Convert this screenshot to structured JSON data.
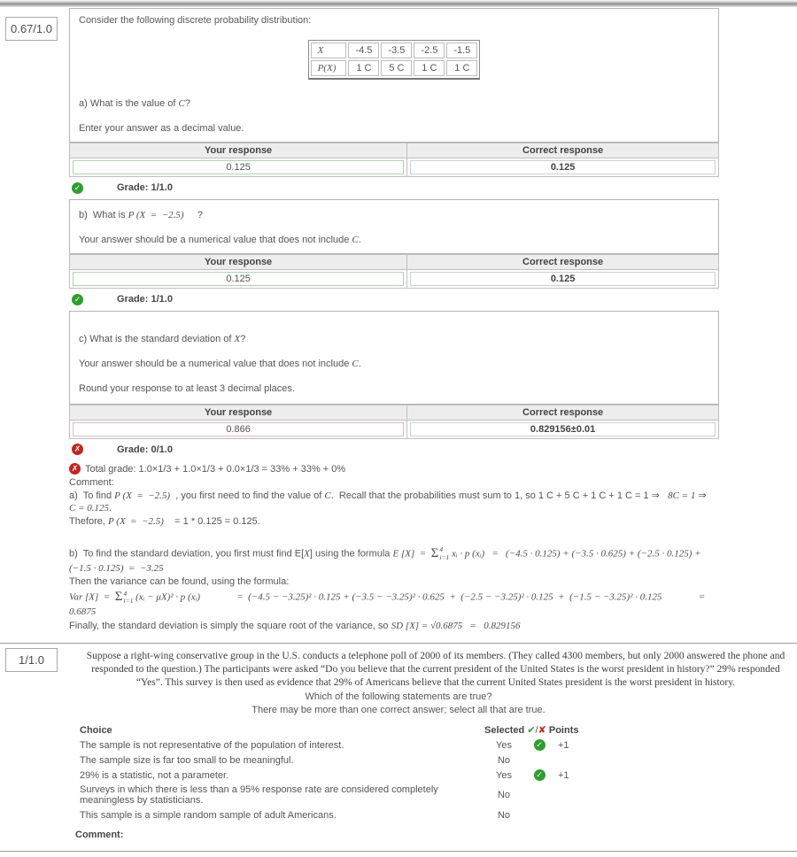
{
  "colors": {
    "green": "#2f9e2f",
    "red": "#c42420"
  },
  "icons": {
    "check_glyph": "✔",
    "cross_glyph": "✘",
    "badge_check": "✓",
    "badge_cross": "✗"
  },
  "labels": {
    "your_response": "Your response",
    "correct_response": "Correct response"
  },
  "q1": {
    "score": "0.67/1.0",
    "intro": "Consider the following discrete probability distribution:",
    "dist_table": {
      "row_labels": [
        "X",
        "P(X)"
      ],
      "x_values": [
        "-4.5",
        "-3.5",
        "-2.5",
        "-1.5"
      ],
      "p_values": [
        "1 C",
        "5 C",
        "1 C",
        "1 C"
      ]
    },
    "part_a": {
      "question_segs": [
        {
          "t": "a) What is the value of "
        },
        {
          "t": "C",
          "m": true
        },
        {
          "t": "?"
        }
      ],
      "instruction_segs": [
        {
          "t": "Enter your answer as a decimal value."
        }
      ],
      "your_response": "0.125",
      "correct_response": "0.125",
      "your_status": "correct",
      "status": "correct",
      "grade": "Grade: 1/1.0"
    },
    "part_b": {
      "question_segs": [
        {
          "t": "b)  What is "
        },
        {
          "t": "P (X  =  −2.5)",
          "m": true
        },
        {
          "t": "     ?"
        }
      ],
      "instruction_segs": [
        {
          "t": "Your answer should be a numerical value that does not include "
        },
        {
          "t": "C",
          "m": true
        },
        {
          "t": "."
        }
      ],
      "your_response": "0.125",
      "correct_response": "0.125",
      "your_status": "correct",
      "status": "correct",
      "grade": "Grade: 1/1.0"
    },
    "part_c": {
      "question_segs": [
        {
          "t": "c) What is the standard deviation of "
        },
        {
          "t": "X",
          "m": true
        },
        {
          "t": "?"
        }
      ],
      "instruction_segs": [
        {
          "t": "Your answer should be a numerical value that does not include "
        },
        {
          "t": "C",
          "m": true
        },
        {
          "t": "."
        }
      ],
      "instruction2_segs": [
        {
          "t": "Round your response to at least 3 decimal places."
        }
      ],
      "your_response": "0.866",
      "correct_response": "0.829156±0.01",
      "your_status": "incorrect",
      "status": "incorrect",
      "grade": "Grade: 0/1.0"
    },
    "total_grade_segs": [
      {
        "t": "Total grade: 1.0×1/3 + 1.0×1/3 + 0.0×1/3 = 33% + 33% + 0%"
      }
    ],
    "comment_label": "Comment:",
    "comment_a_segs": [
      {
        "t": "a)  To find "
      },
      {
        "t": "P (X  =  −2.5)",
        "m": true
      },
      {
        "t": "  , you first need to find the value of "
      },
      {
        "t": "C",
        "m": true
      },
      {
        "t": ".  Recall that the probabilities must sum to 1, so 1 C + 5 C + 1 C + 1 C = 1 ⇒   "
      },
      {
        "t": "8C = 1",
        "m": true
      },
      {
        "t": " ⇒   "
      },
      {
        "t": "C = 0.125",
        "m": true
      },
      {
        "t": "."
      }
    ],
    "comment_thefore_segs": [
      {
        "t": "Thefore, "
      },
      {
        "t": "P (X  =  −2.5)",
        "m": true
      },
      {
        "t": "    = 1 * 0.125 = 0.125."
      }
    ],
    "comment_b_segs": [
      {
        "t": "b)  To find the standard deviation, you first must find E["
      },
      {
        "t": "X",
        "m": true
      },
      {
        "t": "] using the formula "
      },
      {
        "t": "E [X]  =  ",
        "m": true
      },
      {
        "sum": true,
        "sup": "4",
        "sub": "i=1"
      },
      {
        "t": " xᵢ · p (xᵢ)   =   (−4.5 · 0.125) + (−3.5 · 0.625) + (−2.5 · 0.125) + (−1.5 · 0.125)  =  −3.25",
        "m": true
      }
    ],
    "comment_then_segs": [
      {
        "t": "Then the variance can be found, using the formula:"
      }
    ],
    "comment_var_segs": [
      {
        "t": "Var [X]  =  ",
        "m": true
      },
      {
        "sum": true,
        "sup": "4",
        "sub": "i=1"
      },
      {
        "t": " (xᵢ − μX)² · p (xᵢ)",
        "m": true
      },
      {
        "t": "               =  (−4.5 − −3.25)² · 0.125 + (−3.5 − −3.25)² · 0.625  +  (−2.5 − −3.25)² · 0.125  +  (−1.5 − −3.25)² · 0.125",
        "m": true
      },
      {
        "t": "               =  0.6875",
        "m": true
      }
    ],
    "comment_final_segs": [
      {
        "t": "Finally, the standard deviation is simply the square root of the variance, so "
      },
      {
        "t": "SD [X] = √0.6875   =   0.829156",
        "m": true
      }
    ]
  },
  "q2": {
    "score": "1/1.0",
    "paragraph": "Suppose a right-wing conservative group in the U.S. conducts a telephone poll of 2000 of its members.  (They called 4300 members, but only 2000 answered the phone and responded to the question.)  The participants were asked “Do you believe that the current president of the United States is the worst president in history?” 29% responded “Yes”. This survey is then used as evidence that 29% of Americans believe that the current United States president is the worst president in history.",
    "prompt1": "Which of the following statements are true?",
    "prompt2": "There may be more than one correct answer; select all that are true.",
    "header": {
      "choice": "Choice",
      "selected": "Selected ",
      "slash": "/",
      "points": " Points"
    },
    "choices": [
      {
        "text": "The sample is not representative of the population of interest.",
        "selected": "Yes",
        "correct": true,
        "points": "+1"
      },
      {
        "text": "The sample size is far too small to be meaningful.",
        "selected": "No",
        "correct": false,
        "points": ""
      },
      {
        "text": "29% is a statistic, not a parameter.",
        "selected": "Yes",
        "correct": true,
        "points": "+1"
      },
      {
        "text": "Surveys in which there is less than a 95% response rate are considered completely meaningless by statisticians.",
        "selected": "No",
        "correct": false,
        "points": ""
      },
      {
        "text": "This sample is a simple random sample of adult Americans.",
        "selected": "No",
        "correct": false,
        "points": ""
      }
    ],
    "comment_label": "Comment:"
  }
}
